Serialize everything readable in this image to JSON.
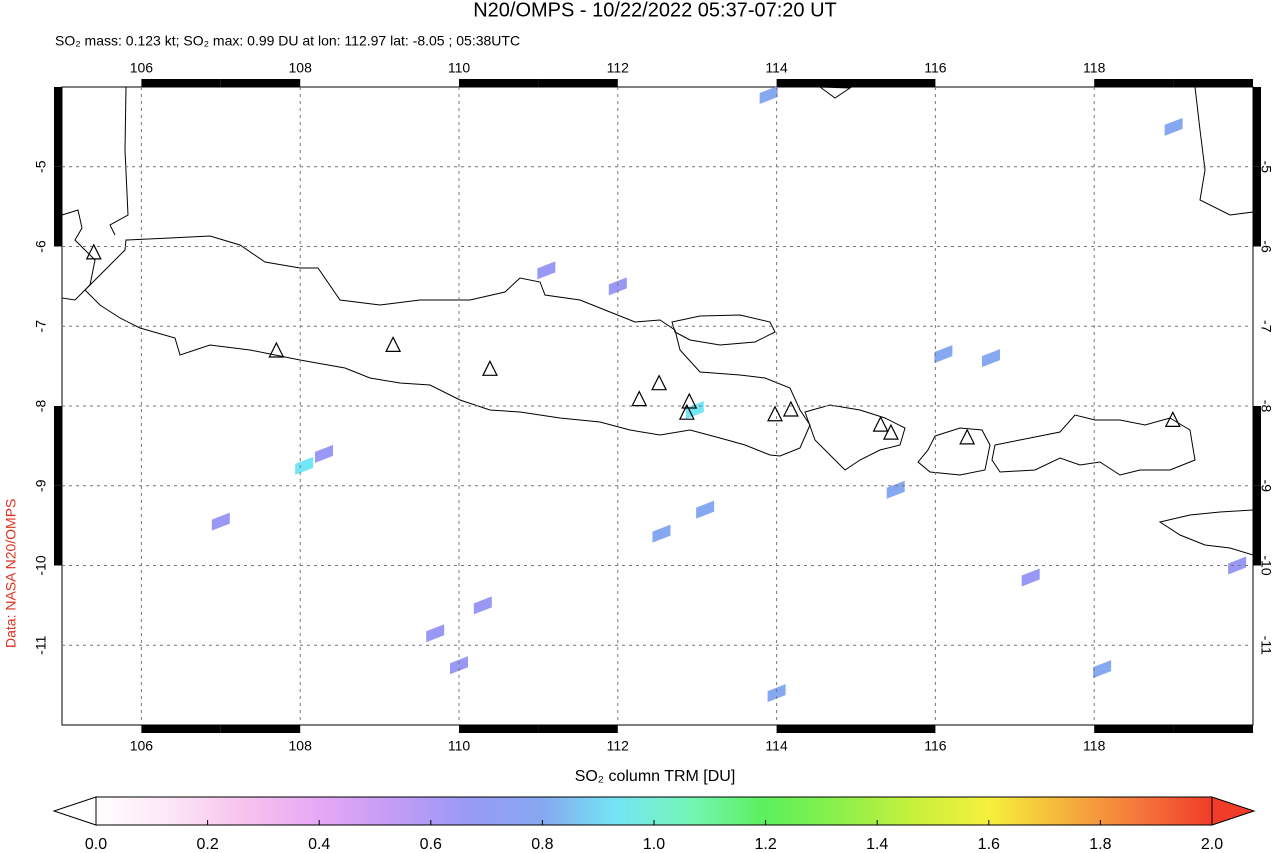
{
  "chart_data": {
    "type": "map",
    "title": "N20/OMPS - 10/22/2022 05:37-07:20 UT",
    "subtitle": "SO₂ mass: 0.123 kt; SO₂ max: 0.99 DU at lon: 112.97 lat: -8.05 ; 05:38UTC",
    "credit": "Data: NASA N20/OMPS",
    "xlim": [
      105,
      120
    ],
    "ylim": [
      -12,
      -4
    ],
    "xticks": [
      106,
      108,
      110,
      112,
      114,
      116,
      118
    ],
    "yticks": [
      -5,
      -6,
      -7,
      -8,
      -9,
      -10,
      -11
    ],
    "grid": true,
    "volcanoes": {
      "x": [
        105.4,
        107.7,
        109.17,
        110.39,
        112.27,
        112.52,
        112.9,
        112.87,
        113.98,
        114.18,
        115.31,
        115.44,
        116.4,
        118.99
      ],
      "y": [
        -6.08,
        -7.31,
        -7.24,
        -7.54,
        -7.92,
        -7.72,
        -7.95,
        -8.09,
        -8.11,
        -8.05,
        -8.24,
        -8.34,
        -8.4,
        -8.18
      ]
    },
    "pixels": {
      "x": [
        112.97,
        108.05,
        108.3,
        113.9,
        119.0,
        115.5,
        113.1,
        112.55,
        116.1,
        116.7,
        110.3,
        110.0,
        107.0,
        111.1,
        118.1,
        114.0,
        119.8,
        112.0,
        109.7,
        117.2
      ],
      "y": [
        -8.05,
        -8.75,
        -8.6,
        -4.1,
        -4.5,
        -9.05,
        -9.3,
        -9.6,
        -7.35,
        -7.4,
        -10.5,
        -11.25,
        -9.45,
        -6.3,
        -11.3,
        -11.6,
        -10.0,
        -6.5,
        -10.85,
        -10.15
      ],
      "values": [
        0.99,
        0.9,
        0.65,
        0.75,
        0.8,
        0.8,
        0.75,
        0.8,
        0.75,
        0.8,
        0.65,
        0.65,
        0.65,
        0.7,
        0.8,
        0.8,
        0.7,
        0.6,
        0.6,
        0.6
      ]
    },
    "colorbar": {
      "label": "SO₂ column TRM [DU]",
      "lim": [
        0,
        2
      ],
      "ticks": [
        {
          "value": 0,
          "label": "0.0"
        },
        0.2,
        0.4,
        0.6,
        0.8,
        {
          "value": 1,
          "label": "1.0"
        },
        1.2,
        1.4,
        1.6,
        1.8,
        {
          "value": 2,
          "label": "2.0"
        }
      ],
      "colors": [
        "#ffffff",
        "#fce6f5",
        "#f7c2ee",
        "#e6a8f5",
        "#c39cf5",
        "#9999f5",
        "#86a8f0",
        "#73e6f5",
        "#73f5b4",
        "#5cf05c",
        "#8cf04a",
        "#c8f03c",
        "#f5f03c",
        "#f5b43c",
        "#f5783c",
        "#f03c28"
      ]
    }
  }
}
